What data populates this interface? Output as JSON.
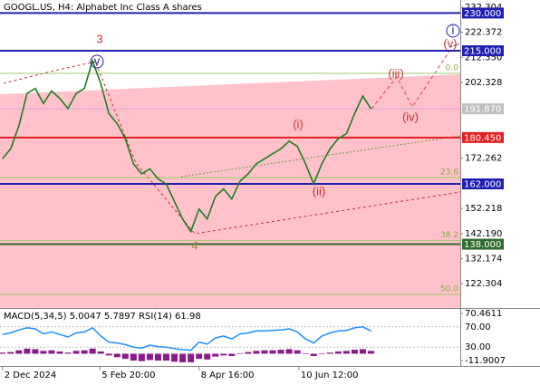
{
  "chart_data": [
    {
      "type": "line",
      "title": "GOOGL.US, H4:  Alphabet Inc Class A shares",
      "color": "#1e7d1e",
      "values": [
        172,
        176,
        185,
        198,
        200,
        194,
        199,
        196,
        192,
        198,
        200,
        211,
        202,
        190,
        186,
        180,
        170,
        166,
        168,
        164,
        162,
        155,
        148,
        143,
        152,
        148,
        157,
        160,
        156,
        163,
        166,
        170,
        172,
        174,
        176,
        179,
        177,
        170,
        162,
        170,
        176,
        180,
        182,
        190,
        197,
        191.87
      ],
      "xlim": [
        -0.3,
        55.9
      ],
      "xticks": [
        {
          "value": 0,
          "label": "2 Dec 2024"
        },
        {
          "value": 11.9,
          "label": "5 Feb 20:00"
        },
        {
          "value": 24,
          "label": "8 Apr 16:00"
        },
        {
          "value": 36.2,
          "label": "10 Jun 12:00"
        }
      ],
      "ylim": [
        112.6,
        235.2
      ],
      "yticks": [
        232.304,
        222.372,
        {
          "value": 212.35,
          "label": "212.350"
        },
        202.328,
        172.262,
        152.218,
        {
          "value": 142.19,
          "label": "142.190"
        },
        132.174,
        122.304
      ],
      "levels": [
        {
          "value": 230,
          "label": "230.000",
          "color": "#2020b0"
        },
        {
          "value": 215,
          "label": "215.000",
          "color": "#2020b0"
        },
        {
          "value": 191.87,
          "label": "191.870",
          "color": "#c0c0c0"
        },
        {
          "value": 180.45,
          "label": "180.450",
          "color": "#e02020"
        },
        {
          "value": 162,
          "label": "162.000",
          "color": "#2020b0"
        },
        {
          "value": 138,
          "label": "138.000",
          "color": "#2e6b2e"
        }
      ],
      "fib_levels": [
        {
          "value": 206,
          "label": "0.0"
        },
        {
          "value": 164.5,
          "label": "23.6"
        },
        {
          "value": 139.5,
          "label": "38.2"
        },
        {
          "value": 118,
          "label": "50.0"
        }
      ],
      "waves": [
        "3",
        "v",
        "4",
        "(i)",
        "(ii)",
        "(iii)",
        "(iv)",
        "(v)",
        "i"
      ]
    },
    {
      "type": "bar",
      "title": "MACD(5,34,5) 5.0047 5.7897 RSI(14) 61.98",
      "color": "#8b1a8b",
      "values": [
        2,
        3,
        6,
        9,
        8,
        5,
        6,
        4,
        2,
        5,
        6,
        9,
        4,
        -3,
        -6,
        -9,
        -12,
        -13,
        -11,
        -12,
        -12,
        -14,
        -15,
        -15,
        -9,
        -10,
        -5,
        -3,
        -4,
        1,
        3,
        5,
        6,
        6,
        7,
        8,
        6,
        1,
        -4,
        -1,
        2,
        4,
        5,
        7,
        8,
        5.0047
      ],
      "ylim": [
        -11.9007,
        70.4611
      ],
      "yticks": [
        70.4611,
        -11.9007
      ],
      "series": [
        {
          "axis": "y2",
          "color": "#1e8fff",
          "values": [
            55,
            58,
            64,
            68,
            66,
            56,
            60,
            55,
            50,
            58,
            60,
            68,
            52,
            40,
            38,
            35,
            30,
            28,
            34,
            31,
            30,
            27,
            25,
            24,
            40,
            36,
            48,
            52,
            46,
            56,
            58,
            62,
            62,
            63,
            64,
            66,
            60,
            46,
            38,
            52,
            58,
            62,
            63,
            68,
            70,
            61.98
          ]
        }
      ],
      "y2lim": [
        0,
        100
      ],
      "y2ticks": [
        {
          "value": 70,
          "label": "70.00"
        },
        {
          "value": 30,
          "label": "30.00"
        }
      ]
    }
  ]
}
